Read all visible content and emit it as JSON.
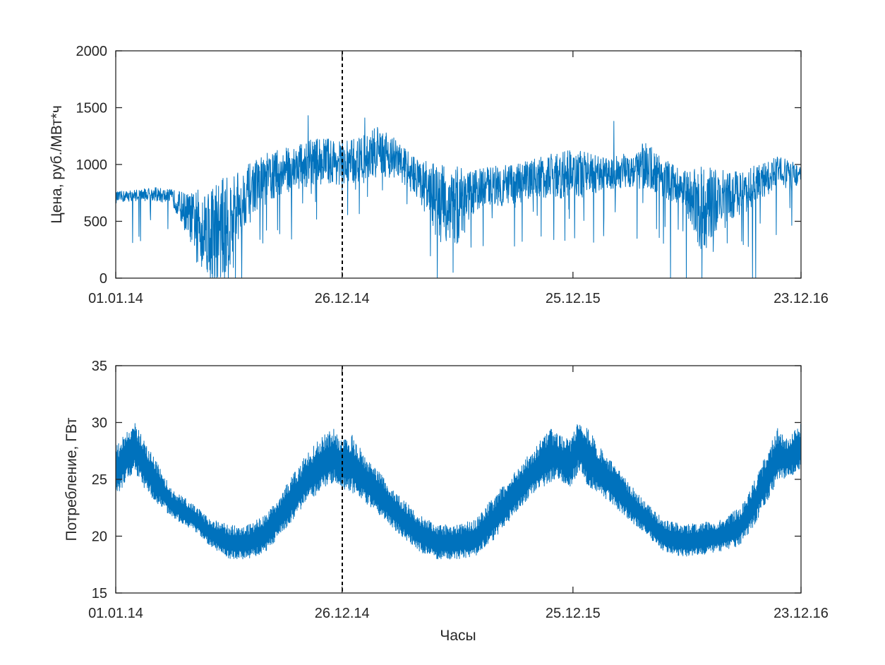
{
  "chart_data": [
    {
      "type": "line",
      "title": "",
      "xlabel": "",
      "ylabel": "Цена, руб./МВт*ч",
      "ylim": [
        0,
        2000
      ],
      "yticks": [
        0,
        500,
        1000,
        1500,
        2000
      ],
      "xticks": [
        "01.01.14",
        "26.12.14",
        "25.12.15",
        "23.12.16"
      ],
      "xlim_days": [
        0,
        1087
      ],
      "vertical_marker_label": "26.12.14",
      "series": [
        {
          "color": "#0072bd",
          "envelope": {
            "day": [
              0,
              30,
              60,
              90,
              120,
              150,
              180,
              210,
              240,
              270,
              300,
              330,
              360,
              390,
              420,
              450,
              480,
              510,
              540,
              570,
              600,
              630,
              660,
              690,
              720,
              750,
              780,
              810,
              840,
              870,
              900,
              930,
              960,
              990,
              1020,
              1050,
              1087
            ],
            "low": [
              660,
              680,
              680,
              640,
              300,
              0,
              0,
              550,
              650,
              750,
              800,
              830,
              820,
              820,
              900,
              850,
              700,
              350,
              250,
              600,
              650,
              600,
              700,
              700,
              700,
              720,
              780,
              800,
              780,
              700,
              650,
              200,
              450,
              550,
              650,
              820,
              800
            ],
            "high": [
              760,
              780,
              800,
              780,
              750,
              850,
              900,
              1000,
              1100,
              1150,
              1200,
              1250,
              1200,
              1250,
              1350,
              1200,
              1050,
              1000,
              1000,
              950,
              1000,
              1000,
              1050,
              1100,
              1150,
              1100,
              1050,
              1100,
              1200,
              1050,
              950,
              1000,
              950,
              950,
              1000,
              1080,
              1000
            ],
            "spikes": [
              {
                "day": 150,
                "value": 0
              },
              {
                "day": 160,
                "value": 0
              },
              {
                "day": 190,
                "value": 0
              },
              {
                "day": 200,
                "value": 0
              },
              {
                "day": 510,
                "value": 0
              },
              {
                "day": 535,
                "value": 50
              },
              {
                "day": 880,
                "value": 0
              },
              {
                "day": 905,
                "value": 0
              },
              {
                "day": 930,
                "value": 0
              },
              {
                "day": 1010,
                "value": 0
              },
              {
                "day": 1015,
                "value": 0
              },
              {
                "day": 305,
                "value": 1430
              },
              {
                "day": 395,
                "value": 1410
              },
              {
                "day": 790,
                "value": 1380
              }
            ]
          }
        }
      ]
    },
    {
      "type": "line",
      "title": "",
      "xlabel": "Часы",
      "ylabel": "Потребление, ГВт",
      "ylim": [
        15,
        35
      ],
      "yticks": [
        15,
        20,
        25,
        30,
        35
      ],
      "xticks": [
        "01.01.14",
        "26.12.14",
        "25.12.15",
        "23.12.16"
      ],
      "xlim_days": [
        0,
        1087
      ],
      "vertical_marker_label": "26.12.14",
      "series": [
        {
          "color": "#0072bd",
          "envelope": {
            "day": [
              0,
              15,
              30,
              45,
              60,
              90,
              120,
              150,
              180,
              210,
              240,
              270,
              300,
              330,
              345,
              359,
              375,
              390,
              420,
              450,
              480,
              510,
              540,
              570,
              600,
              630,
              660,
              690,
              700,
              720,
              735,
              750,
              765,
              780,
              810,
              840,
              870,
              900,
              930,
              960,
              990,
              1010,
              1030,
              1050,
              1065,
              1087
            ],
            "low": [
              23.0,
              24.5,
              25.5,
              24.0,
              23.0,
              21.5,
              20.5,
              19.0,
              17.8,
              17.8,
              18.5,
              20.5,
              22.5,
              24.0,
              24.5,
              24.0,
              23.5,
              23.0,
              21.5,
              20.0,
              18.5,
              17.8,
              17.8,
              18.0,
              19.5,
              21.5,
              23.5,
              24.5,
              25.0,
              24.0,
              25.5,
              24.0,
              23.5,
              23.0,
              21.5,
              20.0,
              18.5,
              18.0,
              18.2,
              18.5,
              19.0,
              20.5,
              22.5,
              24.5,
              25.0,
              25.5
            ],
            "high": [
              28.0,
              29.0,
              30.0,
              28.5,
              27.0,
              24.0,
              23.0,
              21.5,
              21.0,
              21.0,
              22.0,
              24.5,
              27.0,
              29.0,
              29.5,
              28.5,
              29.0,
              27.5,
              25.5,
              23.5,
              22.0,
              21.0,
              21.0,
              21.5,
              23.5,
              25.5,
              27.5,
              29.5,
              29.0,
              28.5,
              30.5,
              29.5,
              28.0,
              27.0,
              25.0,
              23.0,
              21.5,
              21.0,
              21.2,
              21.5,
              22.5,
              24.5,
              27.0,
              29.5,
              28.5,
              30.0
            ]
          }
        }
      ]
    }
  ]
}
